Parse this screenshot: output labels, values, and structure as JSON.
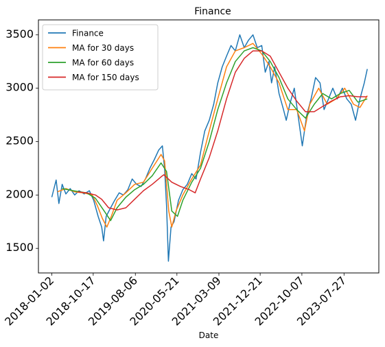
{
  "chart_data": {
    "type": "line",
    "title": "Finance",
    "xlabel": "Date",
    "ylabel": "",
    "x_ticks": [
      "2018-01-02",
      "2018-10-17",
      "2019-08-06",
      "2020-05-21",
      "2021-03-09",
      "2021-12-21",
      "2022-10-07",
      "2023-07-27"
    ],
    "y_ticks": [
      1500,
      2000,
      2500,
      3000,
      3500
    ],
    "xlim": [
      "2017-10-01",
      "2024-03-25"
    ],
    "ylim": [
      1270,
      3640
    ],
    "grid": false,
    "legend_position": "top-left",
    "series": [
      {
        "name": "Finance",
        "color": "#1f77b4",
        "points": [
          [
            "2018-01-02",
            1980
          ],
          [
            "2018-02-01",
            2140
          ],
          [
            "2018-02-20",
            1920
          ],
          [
            "2018-03-15",
            2100
          ],
          [
            "2018-04-10",
            2010
          ],
          [
            "2018-05-10",
            2060
          ],
          [
            "2018-06-10",
            2000
          ],
          [
            "2018-07-10",
            2040
          ],
          [
            "2018-08-15",
            2010
          ],
          [
            "2018-09-20",
            2040
          ],
          [
            "2018-10-20",
            1950
          ],
          [
            "2018-11-20",
            1800
          ],
          [
            "2018-12-15",
            1700
          ],
          [
            "2018-12-28",
            1570
          ],
          [
            "2019-01-15",
            1800
          ],
          [
            "2019-02-15",
            1880
          ],
          [
            "2019-03-15",
            1950
          ],
          [
            "2019-04-15",
            2020
          ],
          [
            "2019-05-15",
            2000
          ],
          [
            "2019-06-15",
            2050
          ],
          [
            "2019-07-15",
            2150
          ],
          [
            "2019-08-15",
            2100
          ],
          [
            "2019-09-15",
            2080
          ],
          [
            "2019-10-15",
            2150
          ],
          [
            "2019-11-15",
            2250
          ],
          [
            "2019-12-15",
            2330
          ],
          [
            "2020-01-15",
            2420
          ],
          [
            "2020-02-10",
            2460
          ],
          [
            "2020-02-25",
            2250
          ],
          [
            "2020-03-10",
            1900
          ],
          [
            "2020-03-23",
            1380
          ],
          [
            "2020-04-10",
            1700
          ],
          [
            "2020-05-01",
            1750
          ],
          [
            "2020-06-01",
            1950
          ],
          [
            "2020-07-01",
            2050
          ],
          [
            "2020-08-01",
            2100
          ],
          [
            "2020-09-01",
            2200
          ],
          [
            "2020-10-01",
            2150
          ],
          [
            "2020-11-01",
            2400
          ],
          [
            "2020-12-01",
            2600
          ],
          [
            "2021-01-01",
            2700
          ],
          [
            "2021-02-01",
            2850
          ],
          [
            "2021-03-01",
            3050
          ],
          [
            "2021-04-01",
            3200
          ],
          [
            "2021-05-01",
            3300
          ],
          [
            "2021-06-01",
            3400
          ],
          [
            "2021-07-01",
            3350
          ],
          [
            "2021-08-01",
            3500
          ],
          [
            "2021-09-01",
            3380
          ],
          [
            "2021-10-01",
            3450
          ],
          [
            "2021-11-01",
            3500
          ],
          [
            "2021-12-01",
            3380
          ],
          [
            "2022-01-01",
            3400
          ],
          [
            "2022-01-25",
            3150
          ],
          [
            "2022-02-20",
            3250
          ],
          [
            "2022-03-10",
            3050
          ],
          [
            "2022-04-01",
            3200
          ],
          [
            "2022-05-01",
            2950
          ],
          [
            "2022-06-01",
            2800
          ],
          [
            "2022-06-20",
            2700
          ],
          [
            "2022-07-15",
            2850
          ],
          [
            "2022-08-15",
            3000
          ],
          [
            "2022-09-15",
            2700
          ],
          [
            "2022-10-10",
            2460
          ],
          [
            "2022-11-10",
            2750
          ],
          [
            "2022-12-10",
            2900
          ],
          [
            "2023-01-10",
            3100
          ],
          [
            "2023-02-10",
            3050
          ],
          [
            "2023-03-10",
            2800
          ],
          [
            "2023-04-10",
            2900
          ],
          [
            "2023-05-10",
            3000
          ],
          [
            "2023-06-10",
            2900
          ],
          [
            "2023-07-15",
            3000
          ],
          [
            "2023-08-15",
            2900
          ],
          [
            "2023-09-15",
            2850
          ],
          [
            "2023-10-15",
            2700
          ],
          [
            "2023-11-15",
            2900
          ],
          [
            "2023-12-15",
            3050
          ],
          [
            "2024-01-05",
            3180
          ]
        ]
      },
      {
        "name": "MA for 30 days",
        "color": "#ff7f0e",
        "points": [
          [
            "2018-02-10",
            2030
          ],
          [
            "2018-04-10",
            2060
          ],
          [
            "2018-06-10",
            2030
          ],
          [
            "2018-08-10",
            2020
          ],
          [
            "2018-10-10",
            2000
          ],
          [
            "2018-11-15",
            1900
          ],
          [
            "2018-12-20",
            1780
          ],
          [
            "2019-01-20",
            1700
          ],
          [
            "2019-02-20",
            1800
          ],
          [
            "2019-04-01",
            1950
          ],
          [
            "2019-06-01",
            2020
          ],
          [
            "2019-08-01",
            2100
          ],
          [
            "2019-10-01",
            2120
          ],
          [
            "2019-12-01",
            2250
          ],
          [
            "2020-02-01",
            2380
          ],
          [
            "2020-02-25",
            2320
          ],
          [
            "2020-03-25",
            1850
          ],
          [
            "2020-04-15",
            1700
          ],
          [
            "2020-05-15",
            1850
          ],
          [
            "2020-07-01",
            2000
          ],
          [
            "2020-09-01",
            2150
          ],
          [
            "2020-11-01",
            2280
          ],
          [
            "2021-01-01",
            2600
          ],
          [
            "2021-03-01",
            2900
          ],
          [
            "2021-05-01",
            3200
          ],
          [
            "2021-07-01",
            3350
          ],
          [
            "2021-09-01",
            3380
          ],
          [
            "2021-11-01",
            3420
          ],
          [
            "2022-01-01",
            3320
          ],
          [
            "2022-03-01",
            3200
          ],
          [
            "2022-05-01",
            3050
          ],
          [
            "2022-07-01",
            2800
          ],
          [
            "2022-09-01",
            2800
          ],
          [
            "2022-10-25",
            2600
          ],
          [
            "2022-12-01",
            2850
          ],
          [
            "2023-02-01",
            3000
          ],
          [
            "2023-04-01",
            2850
          ],
          [
            "2023-06-01",
            2900
          ],
          [
            "2023-08-01",
            3000
          ],
          [
            "2023-10-01",
            2850
          ],
          [
            "2023-11-15",
            2820
          ],
          [
            "2024-01-05",
            2930
          ]
        ]
      },
      {
        "name": "MA for 60 days",
        "color": "#2ca02c",
        "points": [
          [
            "2018-03-15",
            2060
          ],
          [
            "2018-06-01",
            2040
          ],
          [
            "2018-09-01",
            2020
          ],
          [
            "2018-11-01",
            1970
          ],
          [
            "2019-01-01",
            1850
          ],
          [
            "2019-02-15",
            1760
          ],
          [
            "2019-04-01",
            1880
          ],
          [
            "2019-06-01",
            1980
          ],
          [
            "2019-08-01",
            2050
          ],
          [
            "2019-10-01",
            2100
          ],
          [
            "2019-12-01",
            2180
          ],
          [
            "2020-02-01",
            2300
          ],
          [
            "2020-03-10",
            2220
          ],
          [
            "2020-04-15",
            1850
          ],
          [
            "2020-05-25",
            1800
          ],
          [
            "2020-07-01",
            1950
          ],
          [
            "2020-09-01",
            2120
          ],
          [
            "2020-11-01",
            2250
          ],
          [
            "2021-01-01",
            2500
          ],
          [
            "2021-03-01",
            2800
          ],
          [
            "2021-05-01",
            3050
          ],
          [
            "2021-07-01",
            3250
          ],
          [
            "2021-09-01",
            3350
          ],
          [
            "2021-11-01",
            3380
          ],
          [
            "2022-01-01",
            3350
          ],
          [
            "2022-03-01",
            3250
          ],
          [
            "2022-05-01",
            3100
          ],
          [
            "2022-07-01",
            2900
          ],
          [
            "2022-09-01",
            2800
          ],
          [
            "2022-11-01",
            2720
          ],
          [
            "2023-01-01",
            2850
          ],
          [
            "2023-03-01",
            2950
          ],
          [
            "2023-05-01",
            2900
          ],
          [
            "2023-07-01",
            2950
          ],
          [
            "2023-09-01",
            2980
          ],
          [
            "2023-11-01",
            2870
          ],
          [
            "2024-01-05",
            2900
          ]
        ]
      },
      {
        "name": "MA for 150 days",
        "color": "#d62728",
        "points": [
          [
            "2018-07-01",
            2030
          ],
          [
            "2018-09-01",
            2020
          ],
          [
            "2018-11-01",
            2000
          ],
          [
            "2018-12-15",
            1960
          ],
          [
            "2019-02-01",
            1880
          ],
          [
            "2019-04-01",
            1860
          ],
          [
            "2019-06-01",
            1880
          ],
          [
            "2019-08-01",
            1960
          ],
          [
            "2019-10-01",
            2040
          ],
          [
            "2019-12-01",
            2100
          ],
          [
            "2020-02-01",
            2170
          ],
          [
            "2020-02-20",
            2190
          ],
          [
            "2020-04-15",
            2120
          ],
          [
            "2020-06-15",
            2080
          ],
          [
            "2020-08-15",
            2050
          ],
          [
            "2020-09-25",
            2020
          ],
          [
            "2020-11-01",
            2150
          ],
          [
            "2021-01-01",
            2350
          ],
          [
            "2021-03-01",
            2600
          ],
          [
            "2021-05-01",
            2900
          ],
          [
            "2021-07-01",
            3150
          ],
          [
            "2021-09-01",
            3280
          ],
          [
            "2021-11-01",
            3350
          ],
          [
            "2022-01-01",
            3350
          ],
          [
            "2022-03-01",
            3300
          ],
          [
            "2022-05-01",
            3150
          ],
          [
            "2022-07-01",
            3000
          ],
          [
            "2022-09-01",
            2880
          ],
          [
            "2022-11-01",
            2780
          ],
          [
            "2023-01-01",
            2780
          ],
          [
            "2023-03-01",
            2830
          ],
          [
            "2023-05-01",
            2880
          ],
          [
            "2023-07-01",
            2920
          ],
          [
            "2023-09-01",
            2930
          ],
          [
            "2023-11-01",
            2920
          ],
          [
            "2024-01-05",
            2920
          ]
        ]
      }
    ]
  }
}
